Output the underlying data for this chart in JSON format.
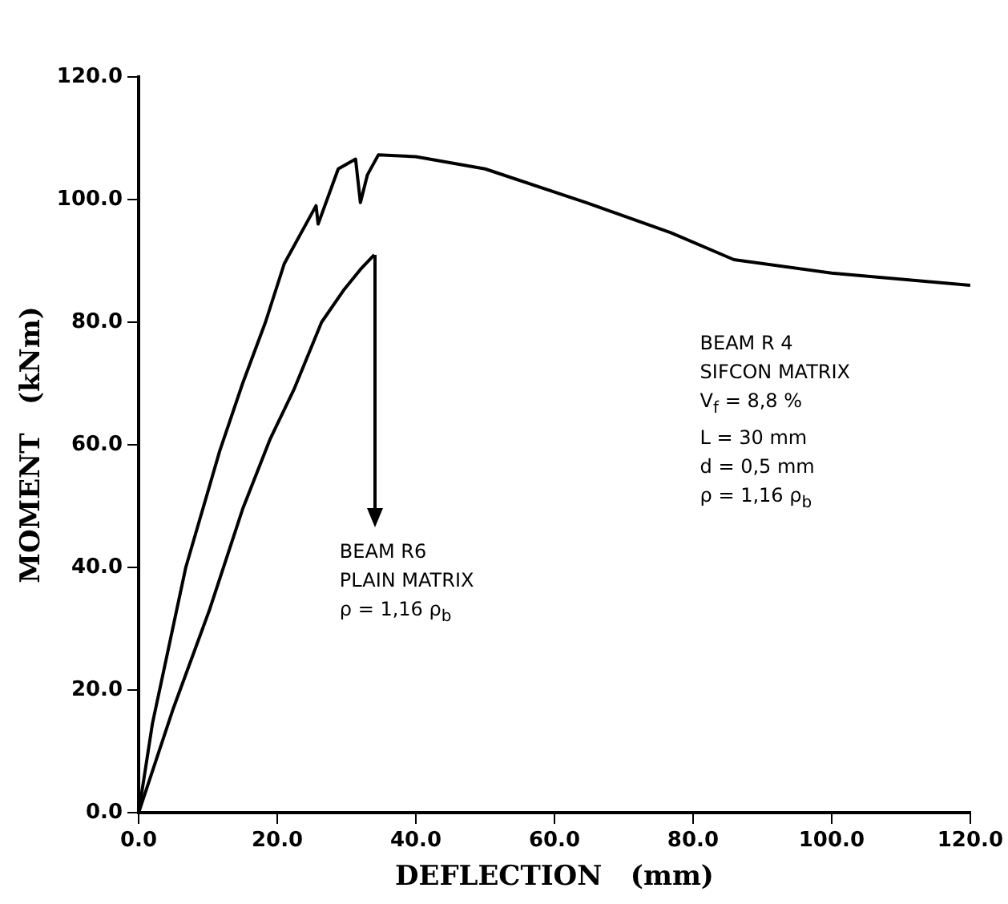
{
  "chart_data": {
    "type": "line",
    "xlabel": "DEFLECTION   (mm)",
    "ylabel": "MOMENT   (kNm)",
    "xlim": [
      0,
      120
    ],
    "ylim": [
      0,
      120
    ],
    "xticks": [
      {
        "value": 0,
        "label": "0.0"
      },
      {
        "value": 20,
        "label": "20.0"
      },
      {
        "value": 40,
        "label": "40.0"
      },
      {
        "value": 60,
        "label": "60.0"
      },
      {
        "value": 80,
        "label": "80.0"
      },
      {
        "value": 100,
        "label": "100.0"
      },
      {
        "value": 120,
        "label": "120.0"
      }
    ],
    "yticks": [
      {
        "value": 0,
        "label": "0.0"
      },
      {
        "value": 20,
        "label": "20.0"
      },
      {
        "value": 40,
        "label": "40.0"
      },
      {
        "value": 60,
        "label": "60.0"
      },
      {
        "value": 80,
        "label": "80.0"
      },
      {
        "value": 100,
        "label": "100.0"
      },
      {
        "value": 120,
        "label": "120.0"
      }
    ],
    "grid": false,
    "legend": false,
    "marker": "none",
    "line_style": "solid",
    "series": [
      {
        "color": "#000000",
        "x": [
          0,
          2,
          6.8,
          11.7,
          15,
          18.3,
          21,
          25.6,
          25.9,
          28.8,
          31.3,
          32,
          33,
          34.6,
          40,
          50,
          64.6,
          76.8,
          85.9,
          100,
          120
        ],
        "values": [
          0,
          14.6,
          40,
          59,
          70,
          80,
          89.5,
          99,
          96,
          105,
          106.6,
          99.5,
          104,
          107.3,
          107,
          105,
          99.5,
          94.6,
          90.2,
          88,
          86
        ]
      },
      {
        "color": "#000000",
        "x": [
          0,
          5,
          10.2,
          15,
          19,
          22.4,
          26.4,
          29.7,
          32,
          34
        ],
        "values": [
          0,
          17,
          33,
          49.5,
          61,
          69,
          80,
          85.4,
          88.6,
          91
        ]
      }
    ],
    "annotations": [
      "BEAM R 4\nSIFCON MATRIX\nV$_{f}$ = 8,8 %\nL  = 30 mm\nd  = 0,5 mm\nρ  = 1,16 ρ$_{b}$",
      "BEAM R6\nPLAIN MATRIX\nρ  = 1,16 ρ$_{b}$"
    ]
  }
}
